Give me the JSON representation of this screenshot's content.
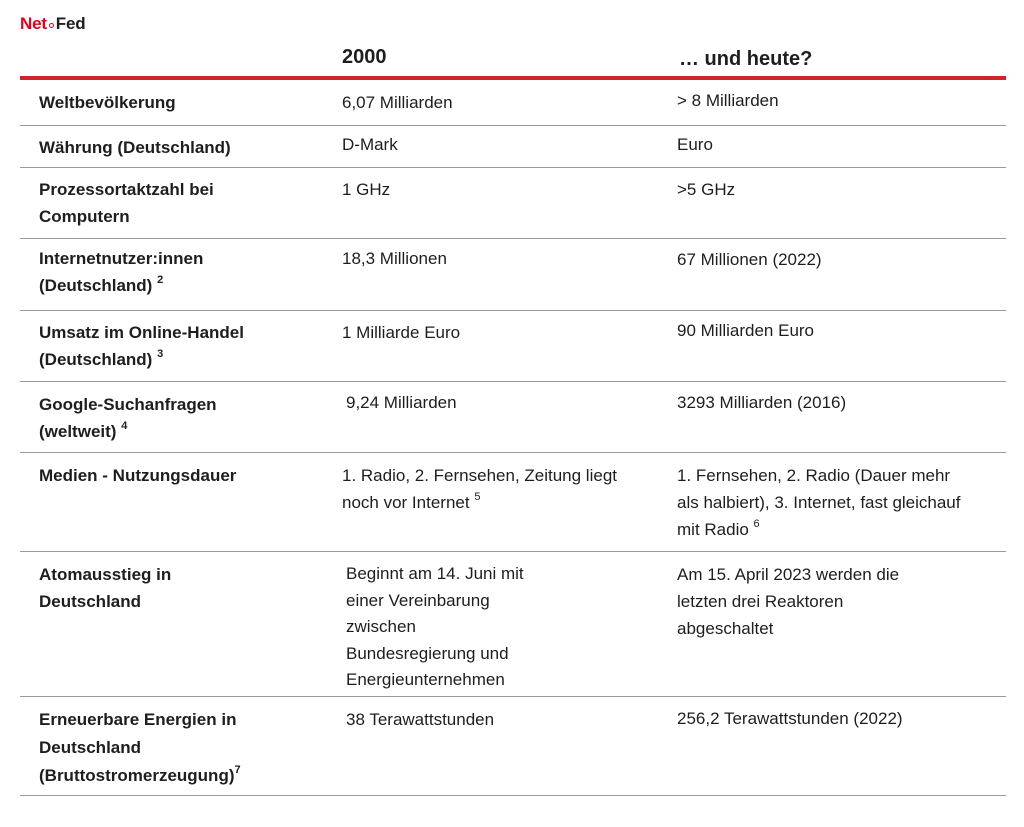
{
  "logo": {
    "net": "Net",
    "fed": "Fed"
  },
  "header": {
    "col_2000": "2000",
    "col_today": "… und heute?"
  },
  "rows": [
    {
      "label": "Weltbevölkerung",
      "label_sup": "",
      "v2000": "6,07 Milliarden",
      "v2000_sup": "",
      "vnow": "> 8 Milliarden",
      "vnow_sup": ""
    },
    {
      "label": "Währung (Deutschland)",
      "label_sup": "",
      "v2000": "D-Mark",
      "v2000_sup": "",
      "vnow": "Euro",
      "vnow_sup": ""
    },
    {
      "label": "Prozessortaktzahl bei Computern",
      "label_sup": "",
      "v2000": "1 GHz",
      "v2000_sup": "",
      "vnow": ">5 GHz",
      "vnow_sup": ""
    },
    {
      "label": "Internetnutzer:innen (Deutschland)",
      "label_sup": "2",
      "v2000": "18,3 Millionen",
      "v2000_sup": "",
      "vnow": "67 Millionen (2022)",
      "vnow_sup": ""
    },
    {
      "label": "Umsatz im Online-Handel (Deutschland)",
      "label_sup": "3",
      "v2000": "1 Milliarde Euro",
      "v2000_sup": "",
      "vnow": "90 Milliarden Euro",
      "vnow_sup": ""
    },
    {
      "label": "Google-Suchanfragen (weltweit)",
      "label_sup": "4",
      "v2000": "9,24 Milliarden",
      "v2000_sup": "",
      "vnow": "3293 Milliarden (2016)",
      "vnow_sup": ""
    },
    {
      "label": "Medien - Nutzungsdauer",
      "label_sup": "",
      "v2000": "1. Radio, 2. Fernsehen, Zeitung liegt noch vor Internet",
      "v2000_sup": "5",
      "vnow": "1. Fernsehen, 2. Radio (Dauer mehr als halbiert), 3. Internet, fast gleichauf mit Radio",
      "vnow_sup": "6"
    },
    {
      "label": "Atomausstieg in Deutschland",
      "label_sup": "",
      "v2000": "Beginnt am 14. Juni mit einer Vereinbarung zwischen Bundesregierung und Energieunternehmen",
      "v2000_sup": "",
      "vnow": "Am 15. April 2023 werden die letzten drei Reaktoren abgeschaltet",
      "vnow_sup": ""
    },
    {
      "label": "Erneuerbare Energien in Deutschland (Bruttostromerzeugung)",
      "label_sup": "7",
      "v2000": "38 Terawattstunden",
      "v2000_sup": "",
      "vnow": "256,2 Terawattstunden (2022)",
      "vnow_sup": ""
    }
  ]
}
